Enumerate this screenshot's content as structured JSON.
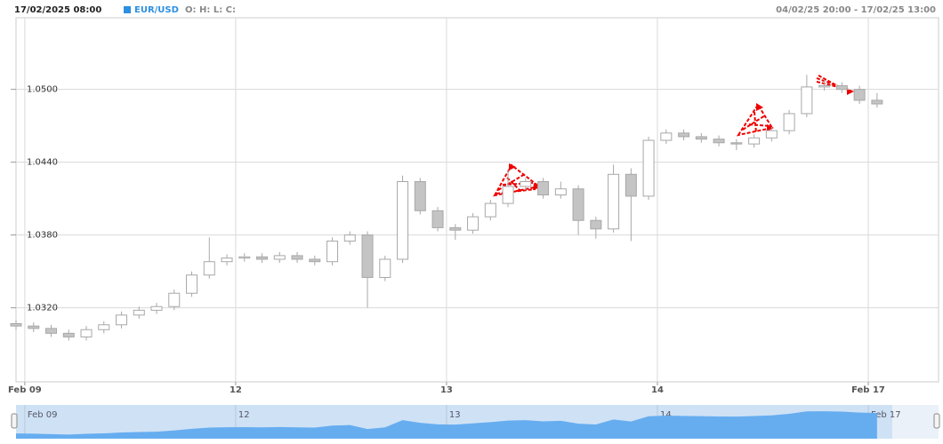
{
  "header": {
    "datetime": "17/02/2025 08:00",
    "symbol": "EUR/USD",
    "ohlc_label": "O: H: L: C:",
    "range": "04/02/25 20:00 - 17/02/25 13:00"
  },
  "chart_data": {
    "type": "candlestick",
    "x": [
      0,
      2,
      4,
      6,
      8,
      10,
      12,
      14,
      16,
      18,
      20,
      22,
      24,
      26,
      28,
      30,
      32,
      34,
      36,
      38,
      40,
      42,
      44,
      46,
      48,
      50,
      52,
      54,
      56,
      58,
      60,
      62,
      64,
      66,
      68,
      70,
      72,
      74,
      76,
      78,
      80,
      82,
      84,
      86,
      88,
      90,
      92,
      94,
      96,
      98
    ],
    "open": [
      1.0307,
      1.0305,
      1.0303,
      1.0299,
      1.0296,
      1.0302,
      1.0306,
      1.0314,
      1.0318,
      1.0321,
      1.0332,
      1.0347,
      1.0358,
      1.0361,
      1.0362,
      1.036,
      1.0363,
      1.036,
      1.0358,
      1.0375,
      1.038,
      1.0345,
      1.036,
      1.0424,
      1.04,
      1.0386,
      1.0384,
      1.0395,
      1.0406,
      1.042,
      1.0424,
      1.0413,
      1.0418,
      1.0392,
      1.0385,
      1.043,
      1.0412,
      1.0458,
      1.0464,
      1.0461,
      1.0459,
      1.0456,
      1.0455,
      1.046,
      1.0466,
      1.048,
      1.0502,
      1.0503,
      1.05,
      1.0491
    ],
    "high": [
      1.031,
      1.0308,
      1.0306,
      1.0302,
      1.0305,
      1.0309,
      1.0317,
      1.0321,
      1.0324,
      1.0335,
      1.035,
      1.0378,
      1.0364,
      1.0365,
      1.0365,
      1.0366,
      1.0366,
      1.0363,
      1.0378,
      1.0383,
      1.0383,
      1.0363,
      1.0429,
      1.0427,
      1.0403,
      1.0389,
      1.0398,
      1.0409,
      1.0434,
      1.0427,
      1.0427,
      1.0424,
      1.0421,
      1.0395,
      1.0438,
      1.0435,
      1.0461,
      1.0467,
      1.0467,
      1.0464,
      1.0462,
      1.0459,
      1.0463,
      1.0469,
      1.0483,
      1.0512,
      1.0508,
      1.0506,
      1.0503,
      1.0497
    ],
    "low": [
      1.0302,
      1.03,
      1.0296,
      1.0293,
      1.0293,
      1.0299,
      1.0303,
      1.0311,
      1.0315,
      1.0318,
      1.0329,
      1.0344,
      1.0355,
      1.0358,
      1.0357,
      1.0357,
      1.0357,
      1.0355,
      1.0355,
      1.0372,
      1.032,
      1.0342,
      1.0357,
      1.0397,
      1.0383,
      1.0376,
      1.0381,
      1.0392,
      1.0403,
      1.0417,
      1.041,
      1.041,
      1.038,
      1.0377,
      1.0382,
      1.0375,
      1.0409,
      1.0455,
      1.0458,
      1.0456,
      1.0453,
      1.045,
      1.0452,
      1.0457,
      1.0463,
      1.0477,
      1.0499,
      1.0497,
      1.0488,
      1.0485
    ],
    "close": [
      1.0305,
      1.0303,
      1.0299,
      1.0296,
      1.0302,
      1.0306,
      1.0314,
      1.0318,
      1.0321,
      1.0332,
      1.0347,
      1.0358,
      1.0361,
      1.0362,
      1.036,
      1.0363,
      1.036,
      1.0358,
      1.0375,
      1.038,
      1.0345,
      1.036,
      1.0424,
      1.04,
      1.0386,
      1.0384,
      1.0395,
      1.0406,
      1.042,
      1.0424,
      1.0413,
      1.0418,
      1.0392,
      1.0385,
      1.043,
      1.0412,
      1.0458,
      1.0464,
      1.0461,
      1.0459,
      1.0456,
      1.0455,
      1.046,
      1.0466,
      1.048,
      1.0502,
      1.0503,
      1.05,
      1.0491,
      1.0488
    ],
    "xlim": [
      0,
      105
    ],
    "xticks": [
      {
        "value": 1,
        "label": "Feb 09"
      },
      {
        "value": 25,
        "label": "12"
      },
      {
        "value": 49,
        "label": "13"
      },
      {
        "value": 73,
        "label": "14"
      },
      {
        "value": 97,
        "label": "Feb 17"
      }
    ],
    "ylim": [
      1.0259,
      1.0559
    ],
    "yticks": [
      {
        "value": 1.032,
        "label": "1.0320"
      },
      {
        "value": 1.038,
        "label": "1.0380"
      },
      {
        "value": 1.044,
        "label": "1.0440"
      },
      {
        "value": 1.05,
        "label": "1.0500"
      }
    ],
    "grid": true,
    "up_color": "#ffffff",
    "down_color": "#c4c4c4",
    "wick_color": "#a8a8a8",
    "navigator_color": "#66adf0"
  }
}
